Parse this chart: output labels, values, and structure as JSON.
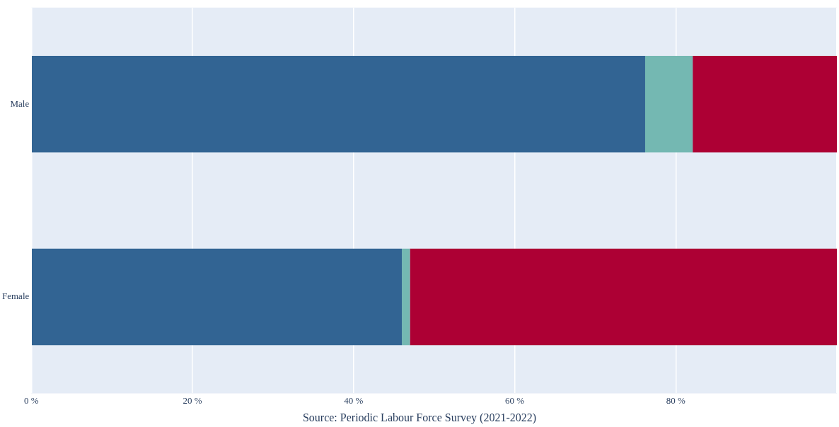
{
  "chart_data": {
    "type": "bar",
    "orientation": "horizontal",
    "stacked": true,
    "categories": [
      "Male",
      "Female"
    ],
    "series": [
      {
        "color": "#326493",
        "values": [
          76.2,
          46.0
        ]
      },
      {
        "color": "#74b8b2",
        "values": [
          5.9,
          1.0
        ]
      },
      {
        "color": "#ad0034",
        "values": [
          17.9,
          53.0
        ]
      }
    ],
    "xlim": [
      0,
      100
    ],
    "xticks": [
      {
        "value": 0,
        "label": "0 %"
      },
      {
        "value": 20,
        "label": "20 %"
      },
      {
        "value": 40,
        "label": "40 %"
      },
      {
        "value": 60,
        "label": "60 %"
      },
      {
        "value": 80,
        "label": "80 %"
      },
      {
        "value": 100,
        "label": null
      }
    ],
    "grid": "x",
    "legend": false,
    "annotations": [
      "Source: Periodic Labour Force Survey (2021-2022)"
    ]
  }
}
